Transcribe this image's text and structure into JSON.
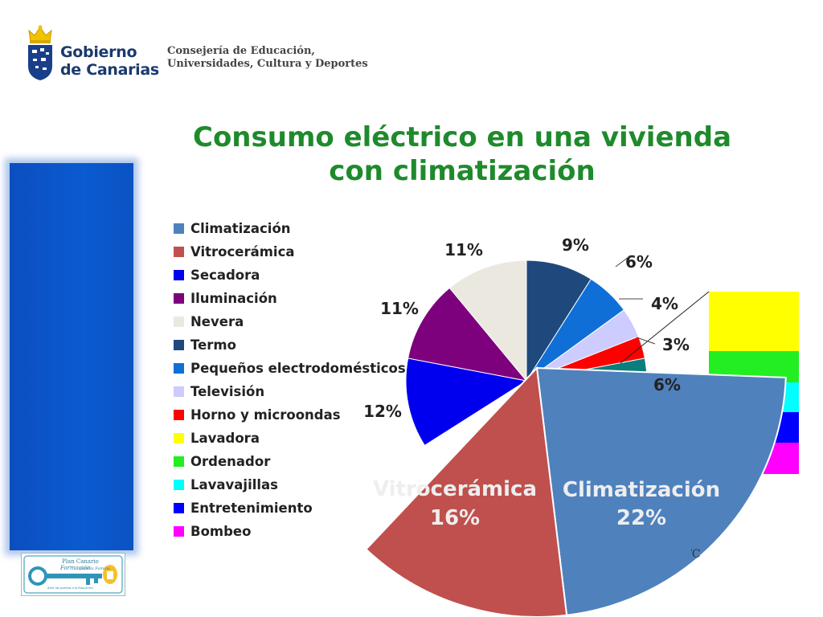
{
  "header": {
    "logo_line1": "Gobierno",
    "logo_line2": "de Canarias",
    "dept_line1": "Consejería de Educación,",
    "dept_line2": "Universidades, Cultura y Deportes"
  },
  "footer": {
    "logo_line1": "Plan Canario",
    "logo_line2": "Formación",
    "logo_line3": "para la Familia",
    "logo_tagline": "Abre las puertas a la Educación",
    "source_fragment": "ITC"
  },
  "colors": {
    "title": "#1f8a2c",
    "side_bar": "#0a55c8"
  },
  "chart_data": {
    "type": "pie",
    "title": "Consumo eléctrico en una vivienda con climatización",
    "legend_position": "left",
    "series": [
      {
        "name": "Climatización",
        "value": 22,
        "label": "22%",
        "color": "#4f81bd"
      },
      {
        "name": "Vitrocerámica",
        "value": 16,
        "label": "16%",
        "color": "#c0504d"
      },
      {
        "name": "Secadora",
        "value": 12,
        "label": "12%",
        "color": "#0000ee"
      },
      {
        "name": "Iluminación",
        "value": 11,
        "label": "11%",
        "color": "#7d007d"
      },
      {
        "name": "Nevera",
        "value": 11,
        "label": "11%",
        "color": "#ebe8e0"
      },
      {
        "name": "Termo",
        "value": 9,
        "label": "9%",
        "color": "#1f497d"
      },
      {
        "name": "Pequeños electrodomésticos",
        "value": 6,
        "label": "6%",
        "color": "#0f6fd6"
      },
      {
        "name": "Televisión",
        "value": 4,
        "label": "4%",
        "color": "#ccccff"
      },
      {
        "name": "Horno y microondas",
        "value": 3,
        "label": "3%",
        "color": "#ff0000"
      },
      {
        "name": "Lavadora",
        "value": null,
        "label": "6%",
        "color": "#ffff00"
      },
      {
        "name": "Ordenador",
        "value": null,
        "label": "",
        "color": "#22ee22"
      },
      {
        "name": "Lavavajillas",
        "value": null,
        "label": "",
        "color": "#00ffff"
      },
      {
        "name": "Entretenimiento",
        "value": null,
        "label": "",
        "color": "#0000ff"
      },
      {
        "name": "Bombeo",
        "value": null,
        "label": "",
        "color": "#ff00ff"
      }
    ]
  }
}
